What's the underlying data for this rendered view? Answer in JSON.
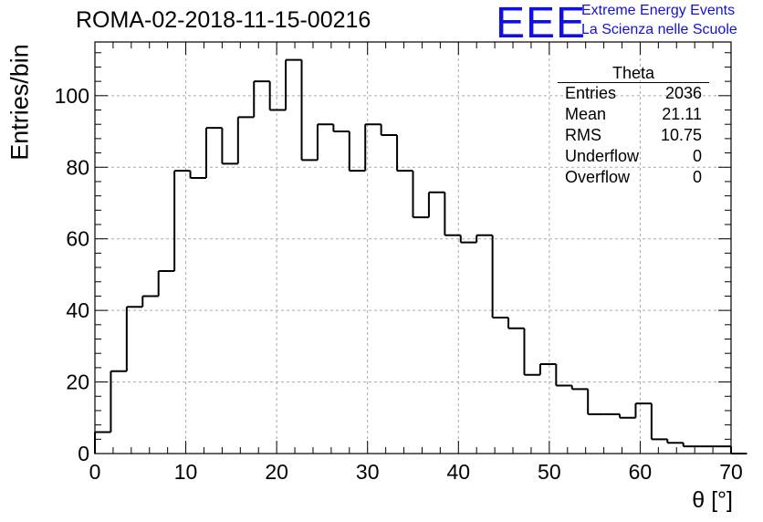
{
  "header": {
    "run_title": "ROMA-02-2018-11-15-00216",
    "logo_text": "EEE",
    "tagline_1": "Extreme Energy Events",
    "tagline_2": "La Scienza nelle Scuole",
    "logo_color": "#1010e0"
  },
  "stats_box": {
    "title": "Theta",
    "rows": [
      {
        "label": "Entries",
        "value": "2036"
      },
      {
        "label": "Mean",
        "value": "21.11"
      },
      {
        "label": "RMS",
        "value": "10.75"
      },
      {
        "label": "Underflow",
        "value": "0"
      },
      {
        "label": "Overflow",
        "value": "0"
      }
    ]
  },
  "chart_data": {
    "type": "bar",
    "title": "ROMA-02-2018-11-15-00216",
    "xlabel": "θ [°]",
    "ylabel": "Entries/bin",
    "xlim": [
      0,
      70
    ],
    "ylim": [
      0,
      115
    ],
    "grid": true,
    "bin_width": 1.75,
    "bin_edges_start": 0,
    "values": [
      6,
      23,
      41,
      44,
      51,
      79,
      77,
      91,
      81,
      94,
      104,
      96,
      110,
      82,
      92,
      90,
      79,
      92,
      89,
      79,
      66,
      73,
      61,
      59,
      61,
      38,
      35,
      22,
      25,
      19,
      18,
      11,
      11,
      10,
      14,
      4,
      3,
      2,
      2,
      2,
      0
    ],
    "xticks": [
      "0",
      "10",
      "20",
      "30",
      "40",
      "50",
      "60",
      "70"
    ],
    "xtick_values": [
      0,
      10,
      20,
      30,
      40,
      50,
      60,
      70
    ],
    "yticks": [
      "0",
      "20",
      "40",
      "60",
      "80",
      "100"
    ],
    "ytick_values": [
      0,
      20,
      40,
      60,
      80,
      100
    ],
    "line_color": "#000000"
  }
}
